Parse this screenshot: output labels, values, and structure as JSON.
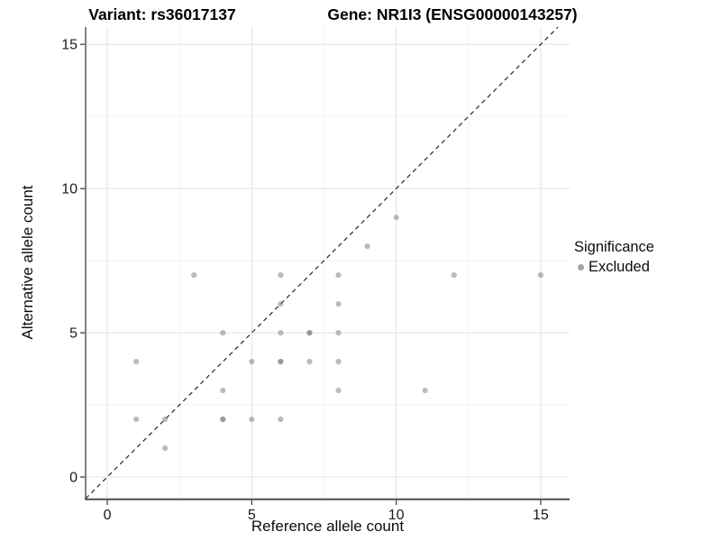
{
  "header": {
    "variant_title": "Variant: rs36017137",
    "gene_title": "Gene: NR1I3 (ENSG00000143257)"
  },
  "legend": {
    "title": "Significance",
    "items": [
      {
        "label": "Excluded",
        "color": "#a3a3a3"
      }
    ]
  },
  "colors": {
    "point": "#777777",
    "point_opacity": 0.5,
    "grid_major": "#e4e4e4",
    "grid_minor": "#f1f1f1",
    "axis_line": "#4d4d4d",
    "tick_mark": "#333333",
    "tick_text": "#1a1a1a",
    "identity_line": "#262626",
    "background": "#ffffff"
  },
  "chart_data": {
    "type": "scatter",
    "title": "Variant: rs36017137 | Gene: NR1I3 (ENSG00000143257)",
    "xlabel": "Reference allele count",
    "ylabel": "Alternative allele count",
    "xlim": [
      -0.75,
      16.0
    ],
    "ylim": [
      -0.75,
      15.6
    ],
    "xticks": [
      0,
      5,
      10,
      15
    ],
    "yticks": [
      0,
      5,
      10,
      15
    ],
    "minor_ticks_x": [
      2.5,
      7.5,
      12.5
    ],
    "minor_ticks_y": [
      2.5,
      7.5,
      12.5
    ],
    "grid": true,
    "legend_position": "right",
    "identity_line": {
      "equation": "y = x",
      "style": "dashed",
      "from": -0.75,
      "to": 15.6
    },
    "series": [
      {
        "name": "Excluded",
        "marker": "circle",
        "point_format": "[ref_count, alt_count, n_overlapping]",
        "points": [
          [
            1,
            2,
            1
          ],
          [
            1,
            4,
            1
          ],
          [
            2,
            1,
            1
          ],
          [
            2,
            2,
            1
          ],
          [
            3,
            7,
            1
          ],
          [
            4,
            2,
            2
          ],
          [
            4,
            3,
            1
          ],
          [
            4,
            5,
            1
          ],
          [
            5,
            2,
            1
          ],
          [
            5,
            4,
            1
          ],
          [
            6,
            2,
            1
          ],
          [
            6,
            4,
            2
          ],
          [
            6,
            5,
            1
          ],
          [
            6,
            6,
            1
          ],
          [
            6,
            7,
            1
          ],
          [
            7,
            4,
            1
          ],
          [
            7,
            5,
            2
          ],
          [
            8,
            3,
            1
          ],
          [
            8,
            4,
            1
          ],
          [
            8,
            5,
            1
          ],
          [
            8,
            6,
            1
          ],
          [
            8,
            7,
            1
          ],
          [
            9,
            8,
            1
          ],
          [
            10,
            9,
            1
          ],
          [
            11,
            3,
            1
          ],
          [
            12,
            7,
            1
          ],
          [
            15,
            7,
            1
          ]
        ]
      }
    ]
  }
}
